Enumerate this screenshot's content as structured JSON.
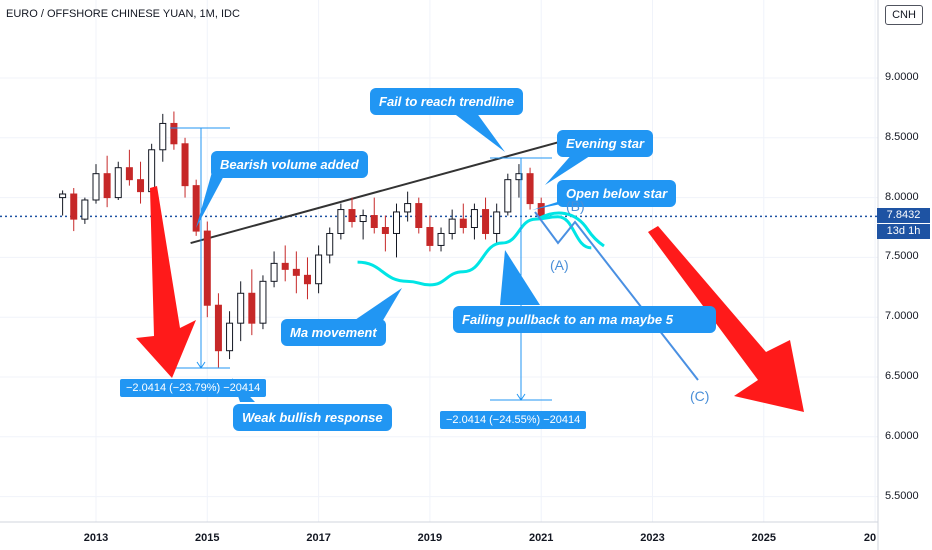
{
  "header": {
    "title": "EURO / OFFSHORE CHINESE YUAN, 1M, IDC",
    "symbol_badge": "CNH"
  },
  "price_tags": {
    "last_price": "7.8432",
    "countdown": "13d 1h"
  },
  "annotations": {
    "fail_trendline": "Fail to reach trendline",
    "evening_star": "Evening star",
    "bearish_volume": "Bearish volume added",
    "open_below_star": "Open below star",
    "ma_movement": "Ma movement",
    "failing_pullback": "Failing pullback to an ma maybe 5",
    "weak_bullish": "Weak bullish response",
    "measure_left": "−2.0414 (−23.79%) −20414",
    "measure_right": "−2.0414 (−24.55%) −20414",
    "wave_a": "(A)",
    "wave_b": "(B)",
    "wave_c": "(C)"
  },
  "colors": {
    "up_candle": "#131722",
    "down_candle": "#c62828",
    "callout_blue": "#2196f3",
    "ma_cyan": "#00e5e5",
    "trendline": "#333333",
    "arrow_red": "#ff1a1a",
    "projection_blue": "#4a90e2",
    "price_line": "#1e53a3"
  },
  "chart_data": {
    "type": "candlestick",
    "title": "EURO / OFFSHORE CHINESE YUAN, 1M, IDC",
    "interval": "1M",
    "y_ticks": [
      "9.0000",
      "8.5000",
      "8.0000",
      "7.5000",
      "7.0000",
      "6.5000",
      "6.0000",
      "5.5000"
    ],
    "x_ticks": [
      "2013",
      "2015",
      "2017",
      "2019",
      "2021",
      "2023",
      "2025",
      "20"
    ],
    "ylim": [
      5.2,
      9.6
    ],
    "xlim": [
      2011.45,
      2025.95
    ],
    "last_price": 7.8432,
    "measure_left": {
      "from": 8.58,
      "to": 6.54,
      "change": -2.0414,
      "pct": -23.79
    },
    "measure_right": {
      "from": 8.31,
      "to": 6.27,
      "change": -2.0414,
      "pct": -24.55
    },
    "trendline": [
      [
        2014.7,
        7.62
      ],
      [
        2021.6,
        8.5
      ]
    ],
    "ma_curve": [
      [
        2017.7,
        7.46
      ],
      [
        2018.6,
        7.3
      ],
      [
        2019.0,
        7.27
      ],
      [
        2019.6,
        7.38
      ],
      [
        2020.3,
        7.62
      ],
      [
        2020.9,
        7.82
      ],
      [
        2021.3,
        7.84
      ],
      [
        2021.9,
        7.58
      ]
    ],
    "candles": [
      {
        "t": 2012.4,
        "o": 8.0,
        "h": 8.06,
        "l": 7.85,
        "c": 8.03
      },
      {
        "t": 2012.6,
        "o": 8.03,
        "h": 8.08,
        "l": 7.72,
        "c": 7.82
      },
      {
        "t": 2012.8,
        "o": 7.82,
        "h": 8.0,
        "l": 7.78,
        "c": 7.98
      },
      {
        "t": 2013.0,
        "o": 7.98,
        "h": 8.28,
        "l": 7.95,
        "c": 8.2
      },
      {
        "t": 2013.2,
        "o": 8.2,
        "h": 8.35,
        "l": 7.92,
        "c": 8.0
      },
      {
        "t": 2013.4,
        "o": 8.0,
        "h": 8.3,
        "l": 7.98,
        "c": 8.25
      },
      {
        "t": 2013.6,
        "o": 8.25,
        "h": 8.4,
        "l": 8.1,
        "c": 8.15
      },
      {
        "t": 2013.8,
        "o": 8.15,
        "h": 8.3,
        "l": 7.95,
        "c": 8.05
      },
      {
        "t": 2014.0,
        "o": 8.05,
        "h": 8.45,
        "l": 8.0,
        "c": 8.4
      },
      {
        "t": 2014.2,
        "o": 8.4,
        "h": 8.7,
        "l": 8.3,
        "c": 8.62
      },
      {
        "t": 2014.4,
        "o": 8.62,
        "h": 8.72,
        "l": 8.4,
        "c": 8.45
      },
      {
        "t": 2014.6,
        "o": 8.45,
        "h": 8.5,
        "l": 8.0,
        "c": 8.1
      },
      {
        "t": 2014.8,
        "o": 8.1,
        "h": 8.15,
        "l": 7.68,
        "c": 7.72
      },
      {
        "t": 2015.0,
        "o": 7.72,
        "h": 7.8,
        "l": 7.0,
        "c": 7.1
      },
      {
        "t": 2015.2,
        "o": 7.1,
        "h": 7.2,
        "l": 6.58,
        "c": 6.72
      },
      {
        "t": 2015.4,
        "o": 6.72,
        "h": 7.05,
        "l": 6.65,
        "c": 6.95
      },
      {
        "t": 2015.6,
        "o": 6.95,
        "h": 7.3,
        "l": 6.8,
        "c": 7.2
      },
      {
        "t": 2015.8,
        "o": 7.2,
        "h": 7.4,
        "l": 6.85,
        "c": 6.95
      },
      {
        "t": 2016.0,
        "o": 6.95,
        "h": 7.35,
        "l": 6.9,
        "c": 7.3
      },
      {
        "t": 2016.2,
        "o": 7.3,
        "h": 7.55,
        "l": 7.25,
        "c": 7.45
      },
      {
        "t": 2016.4,
        "o": 7.45,
        "h": 7.6,
        "l": 7.3,
        "c": 7.4
      },
      {
        "t": 2016.6,
        "o": 7.4,
        "h": 7.55,
        "l": 7.2,
        "c": 7.35
      },
      {
        "t": 2016.8,
        "o": 7.35,
        "h": 7.5,
        "l": 7.15,
        "c": 7.28
      },
      {
        "t": 2017.0,
        "o": 7.28,
        "h": 7.6,
        "l": 7.2,
        "c": 7.52
      },
      {
        "t": 2017.2,
        "o": 7.52,
        "h": 7.75,
        "l": 7.45,
        "c": 7.7
      },
      {
        "t": 2017.4,
        "o": 7.7,
        "h": 7.95,
        "l": 7.65,
        "c": 7.9
      },
      {
        "t": 2017.6,
        "o": 7.9,
        "h": 8.0,
        "l": 7.75,
        "c": 7.8
      },
      {
        "t": 2017.8,
        "o": 7.8,
        "h": 7.9,
        "l": 7.65,
        "c": 7.85
      },
      {
        "t": 2018.0,
        "o": 7.85,
        "h": 8.0,
        "l": 7.7,
        "c": 7.75
      },
      {
        "t": 2018.2,
        "o": 7.75,
        "h": 7.85,
        "l": 7.55,
        "c": 7.7
      },
      {
        "t": 2018.4,
        "o": 7.7,
        "h": 7.95,
        "l": 7.5,
        "c": 7.88
      },
      {
        "t": 2018.6,
        "o": 7.88,
        "h": 8.05,
        "l": 7.8,
        "c": 7.95
      },
      {
        "t": 2018.8,
        "o": 7.95,
        "h": 8.0,
        "l": 7.7,
        "c": 7.75
      },
      {
        "t": 2019.0,
        "o": 7.75,
        "h": 7.85,
        "l": 7.55,
        "c": 7.6
      },
      {
        "t": 2019.2,
        "o": 7.6,
        "h": 7.75,
        "l": 7.55,
        "c": 7.7
      },
      {
        "t": 2019.4,
        "o": 7.7,
        "h": 7.9,
        "l": 7.65,
        "c": 7.82
      },
      {
        "t": 2019.6,
        "o": 7.82,
        "h": 7.95,
        "l": 7.7,
        "c": 7.75
      },
      {
        "t": 2019.8,
        "o": 7.75,
        "h": 7.95,
        "l": 7.65,
        "c": 7.9
      },
      {
        "t": 2020.0,
        "o": 7.9,
        "h": 8.0,
        "l": 7.65,
        "c": 7.7
      },
      {
        "t": 2020.2,
        "o": 7.7,
        "h": 7.95,
        "l": 7.62,
        "c": 7.88
      },
      {
        "t": 2020.4,
        "o": 7.88,
        "h": 8.2,
        "l": 7.85,
        "c": 8.15
      },
      {
        "t": 2020.6,
        "o": 8.15,
        "h": 8.28,
        "l": 8.0,
        "c": 8.2
      },
      {
        "t": 2020.8,
        "o": 8.2,
        "h": 8.25,
        "l": 7.9,
        "c": 7.95
      },
      {
        "t": 2021.0,
        "o": 7.95,
        "h": 8.0,
        "l": 7.8,
        "c": 7.84
      }
    ]
  }
}
